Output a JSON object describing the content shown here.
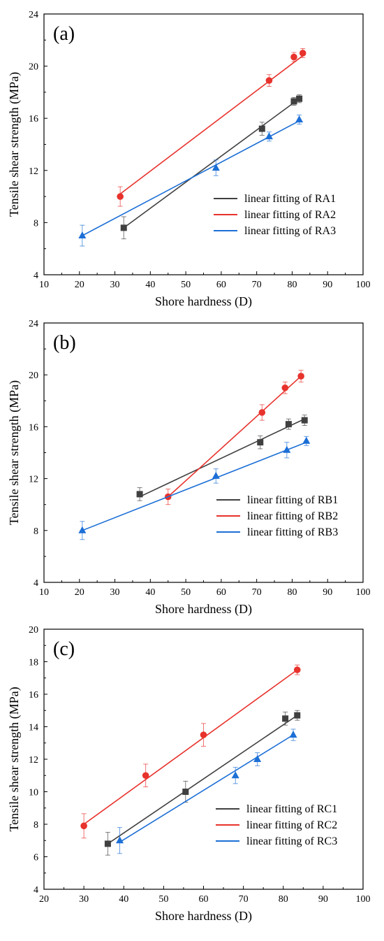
{
  "colors": {
    "series1": "#404040",
    "series2": "#e8322c",
    "series3": "#1c6fd6",
    "axis": "#000000"
  },
  "chart_data": [
    {
      "type": "scatter",
      "panel_label": "(a)",
      "xlabel": "Shore hardness (D)",
      "ylabel": "Tensile shear strength (MPa)",
      "xlim": [
        10,
        100
      ],
      "ylim": [
        4,
        24
      ],
      "xticks": [
        "10",
        "20",
        "30",
        "40",
        "50",
        "60",
        "70",
        "80",
        "90",
        "100"
      ],
      "yticks": [
        "4",
        "8",
        "12",
        "16",
        "20",
        "24"
      ],
      "legend_position": "lower-right",
      "series": [
        {
          "name": "linear fitting of RA1",
          "marker": "square",
          "points": [
            {
              "x": 32.5,
              "y": 7.6,
              "err": 0.85
            },
            {
              "x": 71.5,
              "y": 15.2,
              "err": 0.5
            },
            {
              "x": 80.5,
              "y": 17.3,
              "err": 0.3
            },
            {
              "x": 82.0,
              "y": 17.5,
              "err": 0.3
            }
          ],
          "fit": [
            [
              32.5,
              7.6
            ],
            [
              82.0,
              17.5
            ]
          ]
        },
        {
          "name": "linear fitting of RA2",
          "marker": "circle",
          "points": [
            {
              "x": 31.5,
              "y": 10.0,
              "err": 0.75
            },
            {
              "x": 73.5,
              "y": 18.9,
              "err": 0.45
            },
            {
              "x": 80.5,
              "y": 20.7,
              "err": 0.35
            },
            {
              "x": 83.0,
              "y": 21.0,
              "err": 0.35
            }
          ],
          "fit": [
            [
              31.5,
              10.2
            ],
            [
              83.0,
              20.8
            ]
          ]
        },
        {
          "name": "linear fitting of RA3",
          "marker": "triangle",
          "points": [
            {
              "x": 20.8,
              "y": 7.0,
              "err": 0.8
            },
            {
              "x": 58.5,
              "y": 12.2,
              "err": 0.6
            },
            {
              "x": 73.5,
              "y": 14.6,
              "err": 0.35
            },
            {
              "x": 82.0,
              "y": 15.9,
              "err": 0.35
            }
          ],
          "fit": [
            [
              20.8,
              7.0
            ],
            [
              82.0,
              15.8
            ]
          ]
        }
      ]
    },
    {
      "type": "scatter",
      "panel_label": "(b)",
      "xlabel": "Shore hardness (D)",
      "ylabel": "Tensile shear strength (MPa)",
      "xlim": [
        10,
        100
      ],
      "ylim": [
        4,
        24
      ],
      "xticks": [
        "10",
        "20",
        "30",
        "40",
        "50",
        "60",
        "70",
        "80",
        "90",
        "100"
      ],
      "yticks": [
        "4",
        "8",
        "12",
        "16",
        "20",
        "24"
      ],
      "legend_position": "lower-right",
      "series": [
        {
          "name": "linear fitting of RB1",
          "marker": "square",
          "points": [
            {
              "x": 37.0,
              "y": 10.8,
              "err": 0.5
            },
            {
              "x": 71.0,
              "y": 14.8,
              "err": 0.5
            },
            {
              "x": 79.0,
              "y": 16.2,
              "err": 0.4
            },
            {
              "x": 83.5,
              "y": 16.5,
              "err": 0.4
            }
          ],
          "fit": [
            [
              37.0,
              10.6
            ],
            [
              83.5,
              16.6
            ]
          ]
        },
        {
          "name": "linear fitting of RB2",
          "marker": "circle",
          "points": [
            {
              "x": 45.0,
              "y": 10.6,
              "err": 0.6
            },
            {
              "x": 71.5,
              "y": 17.1,
              "err": 0.6
            },
            {
              "x": 78.0,
              "y": 19.0,
              "err": 0.45
            },
            {
              "x": 82.5,
              "y": 19.9,
              "err": 0.45
            }
          ],
          "fit": [
            [
              45.0,
              10.6
            ],
            [
              82.5,
              19.9
            ]
          ]
        },
        {
          "name": "linear fitting of RB3",
          "marker": "triangle",
          "points": [
            {
              "x": 20.8,
              "y": 8.0,
              "err": 0.7
            },
            {
              "x": 58.5,
              "y": 12.2,
              "err": 0.55
            },
            {
              "x": 78.5,
              "y": 14.2,
              "err": 0.6
            },
            {
              "x": 84.0,
              "y": 14.9,
              "err": 0.35
            }
          ],
          "fit": [
            [
              20.8,
              8.0
            ],
            [
              84.0,
              14.8
            ]
          ]
        }
      ]
    },
    {
      "type": "scatter",
      "panel_label": "(c)",
      "xlabel": "Shore hardness (D)",
      "ylabel": "Tensile shear strength (MPa)",
      "xlim": [
        20,
        100
      ],
      "ylim": [
        4,
        20
      ],
      "xticks": [
        "20",
        "30",
        "40",
        "50",
        "60",
        "70",
        "80",
        "90",
        "100"
      ],
      "yticks": [
        "4",
        "6",
        "8",
        "10",
        "12",
        "14",
        "16",
        "18",
        "20"
      ],
      "legend_position": "lower-right",
      "series": [
        {
          "name": "linear fitting of RC1",
          "marker": "square",
          "points": [
            {
              "x": 36.0,
              "y": 6.8,
              "err": 0.7
            },
            {
              "x": 55.5,
              "y": 10.0,
              "err": 0.65
            },
            {
              "x": 80.5,
              "y": 14.5,
              "err": 0.4
            },
            {
              "x": 83.5,
              "y": 14.7,
              "err": 0.3
            }
          ],
          "fit": [
            [
              36.0,
              6.8
            ],
            [
              83.5,
              14.7
            ]
          ]
        },
        {
          "name": "linear fitting of RC2",
          "marker": "circle",
          "points": [
            {
              "x": 30.0,
              "y": 7.9,
              "err": 0.75
            },
            {
              "x": 45.5,
              "y": 11.0,
              "err": 0.7
            },
            {
              "x": 60.0,
              "y": 13.5,
              "err": 0.7
            },
            {
              "x": 83.5,
              "y": 17.5,
              "err": 0.3
            }
          ],
          "fit": [
            [
              30.0,
              8.0
            ],
            [
              83.5,
              17.5
            ]
          ]
        },
        {
          "name": "linear fitting of RC3",
          "marker": "triangle",
          "points": [
            {
              "x": 39.0,
              "y": 7.0,
              "err": 0.8
            },
            {
              "x": 68.0,
              "y": 11.0,
              "err": 0.5
            },
            {
              "x": 73.5,
              "y": 12.0,
              "err": 0.4
            },
            {
              "x": 82.5,
              "y": 13.5,
              "err": 0.35
            }
          ],
          "fit": [
            [
              39.0,
              6.9
            ],
            [
              82.5,
              13.5
            ]
          ]
        }
      ]
    }
  ]
}
